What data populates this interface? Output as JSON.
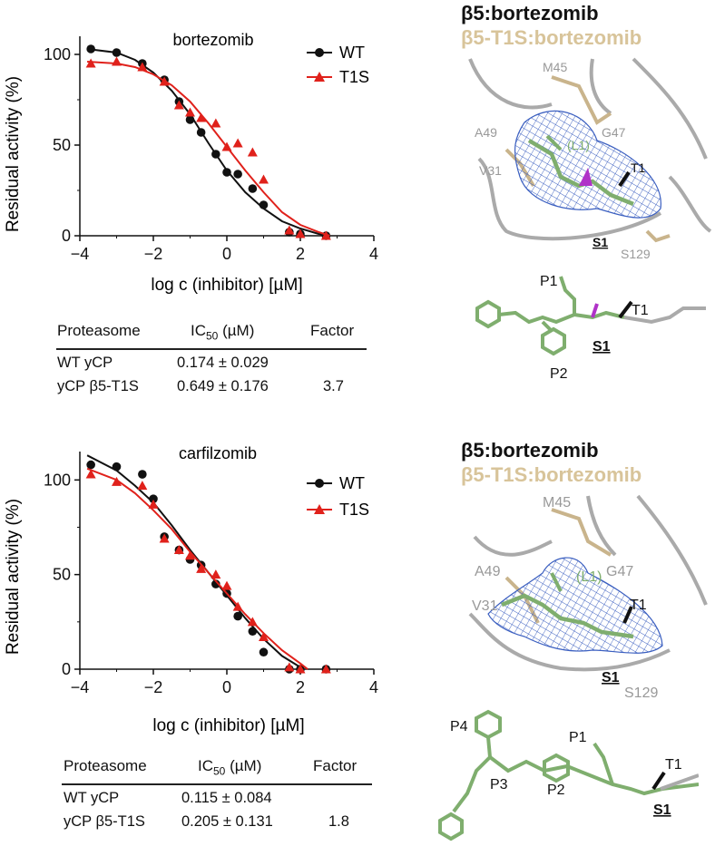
{
  "panels": [
    {
      "id": "top",
      "chart_data": {
        "type": "scatter",
        "title": "bortezomib",
        "xlabel": "log c (inhibitor) [µM]",
        "ylabel": "Residual activity (%)",
        "xlim": [
          -4,
          4
        ],
        "ylim": [
          0,
          110
        ],
        "xticks": [
          "−4",
          "−2",
          "0",
          "2",
          "4"
        ],
        "yticks": [
          "0",
          "50",
          "100"
        ],
        "legend_position": "top-right",
        "series": [
          {
            "name": "WT",
            "color": "#111111",
            "marker": "circle",
            "points": [
              [
                -3.7,
                103
              ],
              [
                -3.0,
                101
              ],
              [
                -2.3,
                95
              ],
              [
                -1.7,
                86
              ],
              [
                -1.3,
                74
              ],
              [
                -1.0,
                64
              ],
              [
                -0.7,
                57
              ],
              [
                -0.3,
                45
              ],
              [
                0.0,
                35
              ],
              [
                0.3,
                34
              ],
              [
                0.7,
                26
              ],
              [
                1.0,
                17
              ],
              [
                1.7,
                2
              ],
              [
                2.0,
                1
              ],
              [
                2.7,
                0
              ]
            ],
            "curve": [
              [
                -3.8,
                103
              ],
              [
                -3.0,
                101
              ],
              [
                -2.5,
                97
              ],
              [
                -2.0,
                90
              ],
              [
                -1.5,
                80
              ],
              [
                -1.0,
                67
              ],
              [
                -0.5,
                51
              ],
              [
                0.0,
                36
              ],
              [
                0.5,
                24
              ],
              [
                1.0,
                15
              ],
              [
                1.5,
                8
              ],
              [
                2.0,
                4
              ],
              [
                2.5,
                1
              ],
              [
                2.8,
                0
              ]
            ]
          },
          {
            "name": "T1S",
            "color": "#e0211b",
            "marker": "triangle",
            "points": [
              [
                -3.7,
                95
              ],
              [
                -3.0,
                96
              ],
              [
                -2.3,
                93
              ],
              [
                -1.7,
                85
              ],
              [
                -1.3,
                72
              ],
              [
                -1.0,
                68
              ],
              [
                -0.7,
                65
              ],
              [
                -0.3,
                62
              ],
              [
                0.0,
                49
              ],
              [
                0.3,
                51
              ],
              [
                0.7,
                46
              ],
              [
                1.0,
                31
              ],
              [
                1.7,
                3
              ],
              [
                2.0,
                1
              ],
              [
                2.7,
                0
              ]
            ],
            "curve": [
              [
                -3.8,
                96
              ],
              [
                -3.0,
                95
              ],
              [
                -2.5,
                93
              ],
              [
                -2.0,
                89
              ],
              [
                -1.5,
                83
              ],
              [
                -1.0,
                74
              ],
              [
                -0.5,
                62
              ],
              [
                0.0,
                49
              ],
              [
                0.5,
                36
              ],
              [
                1.0,
                24
              ],
              [
                1.5,
                13
              ],
              [
                2.0,
                6
              ],
              [
                2.5,
                2
              ],
              [
                2.8,
                0
              ]
            ]
          }
        ]
      },
      "table": {
        "headers": [
          "Proteasome",
          "IC50 (µM)",
          "Factor"
        ],
        "rows": [
          [
            "WT yCP",
            "0.174 ± 0.029",
            ""
          ],
          [
            "yCP β5-T1S",
            "0.649 ± 0.176",
            "3.7"
          ]
        ]
      },
      "structure": {
        "title_dark": "β5:bortezomib",
        "title_tan": "β5-T1S:bortezomib",
        "labels_upper": [
          "M45",
          "A49",
          "G47",
          "(L1)",
          "V31",
          "T1",
          "S1",
          "S129"
        ],
        "labels_lower": [
          "P1",
          "T1",
          "S1",
          "P2"
        ]
      }
    },
    {
      "id": "bottom",
      "chart_data": {
        "type": "scatter",
        "title": "carfilzomib",
        "xlabel": "log c (inhibitor) [µM]",
        "ylabel": "Residual activity (%)",
        "xlim": [
          -4,
          4
        ],
        "ylim": [
          0,
          115
        ],
        "xticks": [
          "−4",
          "−2",
          "0",
          "2",
          "4"
        ],
        "yticks": [
          "0",
          "50",
          "100"
        ],
        "legend_position": "top-right",
        "series": [
          {
            "name": "WT",
            "color": "#111111",
            "marker": "circle",
            "points": [
              [
                -3.7,
                108
              ],
              [
                -3.0,
                107
              ],
              [
                -2.3,
                103
              ],
              [
                -2.0,
                90
              ],
              [
                -1.7,
                70
              ],
              [
                -1.3,
                63
              ],
              [
                -1.0,
                58
              ],
              [
                -0.7,
                55
              ],
              [
                -0.3,
                45
              ],
              [
                0.0,
                40
              ],
              [
                0.3,
                28
              ],
              [
                0.7,
                20
              ],
              [
                1.0,
                9
              ],
              [
                1.7,
                0
              ],
              [
                2.0,
                0
              ],
              [
                2.7,
                0
              ]
            ],
            "curve": [
              [
                -3.8,
                113
              ],
              [
                -3.0,
                105
              ],
              [
                -2.5,
                97
              ],
              [
                -2.0,
                88
              ],
              [
                -1.5,
                76
              ],
              [
                -1.0,
                63
              ],
              [
                -0.5,
                51
              ],
              [
                0.0,
                39
              ],
              [
                0.5,
                27
              ],
              [
                1.0,
                16
              ],
              [
                1.5,
                7
              ],
              [
                2.0,
                1
              ],
              [
                2.1,
                0
              ]
            ]
          },
          {
            "name": "T1S",
            "color": "#e0211b",
            "marker": "triangle",
            "points": [
              [
                -3.7,
                103
              ],
              [
                -3.0,
                99
              ],
              [
                -2.3,
                97
              ],
              [
                -2.0,
                87
              ],
              [
                -1.7,
                69
              ],
              [
                -1.3,
                63
              ],
              [
                -1.0,
                60
              ],
              [
                -0.7,
                53
              ],
              [
                -0.3,
                50
              ],
              [
                0.0,
                44
              ],
              [
                0.3,
                33
              ],
              [
                0.7,
                25
              ],
              [
                1.0,
                17
              ],
              [
                1.7,
                1
              ],
              [
                2.0,
                0
              ],
              [
                2.7,
                0
              ]
            ],
            "curve": [
              [
                -3.8,
                106
              ],
              [
                -3.0,
                100
              ],
              [
                -2.5,
                93
              ],
              [
                -2.0,
                84
              ],
              [
                -1.5,
                74
              ],
              [
                -1.0,
                62
              ],
              [
                -0.5,
                51
              ],
              [
                0.0,
                40
              ],
              [
                0.5,
                29
              ],
              [
                1.0,
                19
              ],
              [
                1.5,
                10
              ],
              [
                2.0,
                3
              ],
              [
                2.2,
                0
              ]
            ]
          }
        ]
      },
      "table": {
        "headers": [
          "Proteasome",
          "IC50 (µM)",
          "Factor"
        ],
        "rows": [
          [
            "WT yCP",
            "0.115 ± 0.084",
            ""
          ],
          [
            "yCP β5-T1S",
            "0.205 ± 0.131",
            "1.8"
          ]
        ]
      },
      "structure": {
        "title_dark": "β5:bortezomib",
        "title_tan": "β5-T1S:bortezomib",
        "labels_upper": [
          "M45",
          "A49",
          "G47",
          "(L1)",
          "V31",
          "T1",
          "S1",
          "S129"
        ],
        "labels_lower": [
          "P4",
          "P1",
          "T1",
          "P3",
          "P2",
          "S1"
        ]
      }
    }
  ],
  "colors": {
    "wt": "#111111",
    "t1s": "#e0211b",
    "tan": "#c9b48c",
    "mesh": "#3b5fc0",
    "green": "#7fae6e",
    "grey": "#9a9a9a"
  }
}
